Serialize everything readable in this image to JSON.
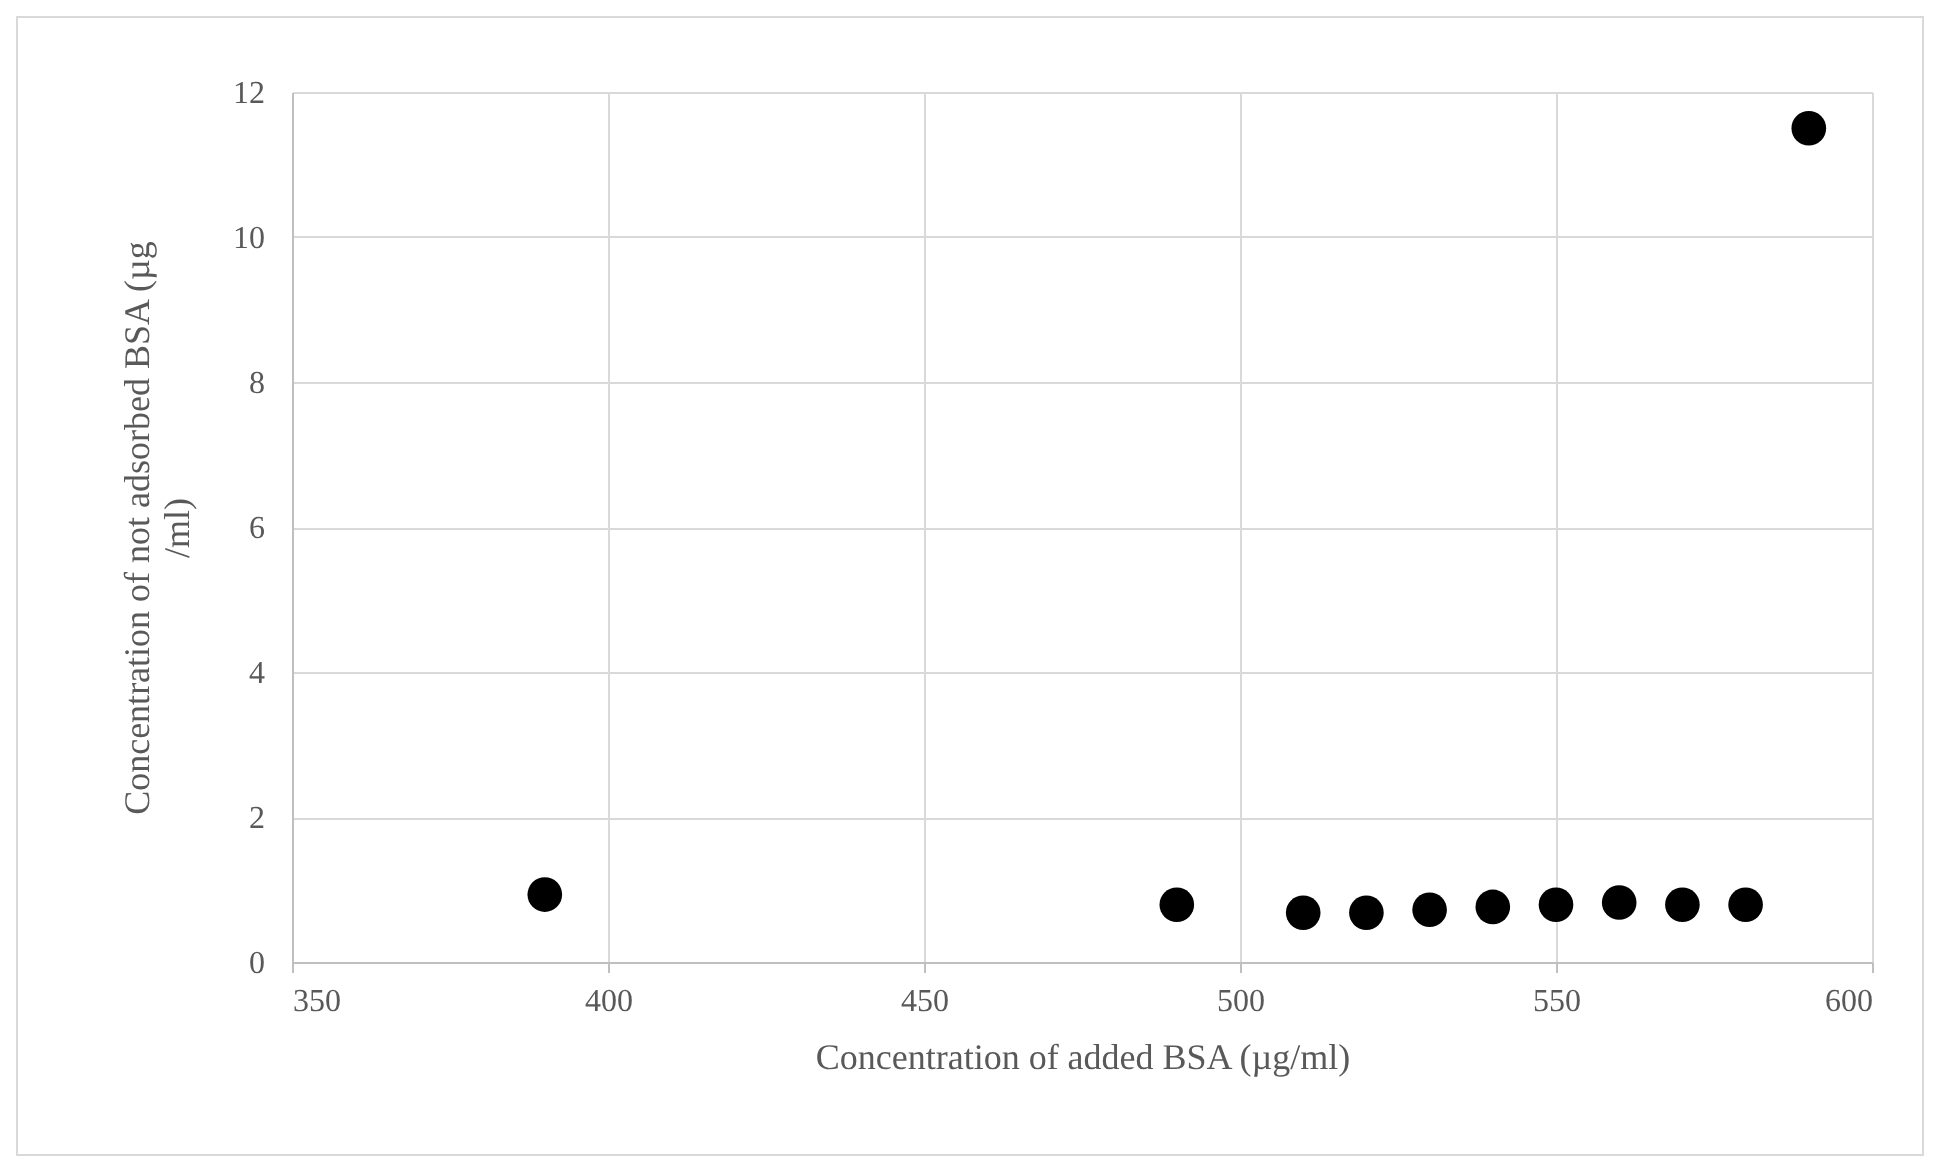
{
  "chart_data": {
    "type": "scatter",
    "xlabel": "Concentration of added BSA (µg/ml)",
    "ylabel": "Concentration of not adsorbed BSA (µg /ml)",
    "x": [
      390,
      490,
      510,
      520,
      530,
      540,
      550,
      560,
      570,
      580,
      590
    ],
    "series": [
      {
        "color": "#000000",
        "values": [
          0.93,
          0.79,
          0.68,
          0.68,
          0.72,
          0.76,
          0.79,
          0.82,
          0.79,
          0.79,
          11.5
        ]
      }
    ],
    "xlim": [
      350,
      600
    ],
    "xticks": [
      350,
      400,
      450,
      500,
      550,
      600
    ],
    "ylim": [
      0,
      12
    ],
    "yticks": [
      0,
      2,
      4,
      6,
      8,
      10,
      12
    ],
    "grid": true,
    "marker": "circle"
  }
}
